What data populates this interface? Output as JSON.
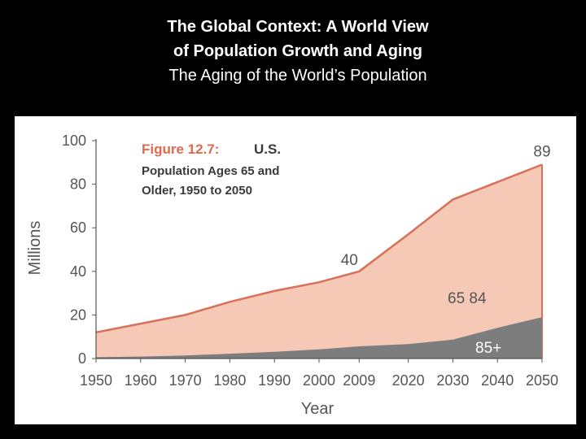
{
  "slide": {
    "title_line1": "The Global Context: A World View",
    "title_line2": "of Population Growth and Aging",
    "subtitle": "The Aging of the World’s Population"
  },
  "colors": {
    "area_65_84": "#f5c9b6",
    "line_65_84": "#d9705a",
    "area_85_plus": "#7d7d7d",
    "figure_label": "#e2684e",
    "figure_text": "#3a3a3a",
    "axis": "#555555"
  },
  "chart_data": {
    "type": "area",
    "figure_label": "Figure 12.7:",
    "title_lines": [
      "U.S.",
      "Population Ages 65 and",
      "Older, 1950 to 2050"
    ],
    "xlabel": "Year",
    "ylabel": "Millions",
    "xlim": [
      1950,
      2050
    ],
    "ylim": [
      0,
      100
    ],
    "x_ticks": [
      1950,
      1960,
      1970,
      1980,
      1990,
      2000,
      2009,
      2020,
      2030,
      2040,
      2050
    ],
    "y_ticks": [
      0,
      20,
      40,
      60,
      80,
      100
    ],
    "series": [
      {
        "name": "65+",
        "label": "65  84",
        "x": [
          1950,
          1960,
          1970,
          1980,
          1990,
          2000,
          2009,
          2020,
          2030,
          2040,
          2050
        ],
        "values": [
          12,
          16,
          20,
          26,
          31,
          35,
          40,
          57,
          73,
          81,
          89
        ]
      },
      {
        "name": "85+",
        "label": "85+",
        "x": [
          1950,
          1960,
          1970,
          1980,
          1990,
          2000,
          2009,
          2020,
          2030,
          2040,
          2050
        ],
        "values": [
          0.6,
          0.9,
          1.4,
          2.2,
          3.1,
          4.2,
          5.6,
          6.6,
          8.7,
          14.1,
          19
        ]
      }
    ],
    "annotations": [
      {
        "text": "40",
        "x": 2009,
        "y": 40
      },
      {
        "text": "89",
        "x": 2050,
        "y": 89
      }
    ]
  }
}
